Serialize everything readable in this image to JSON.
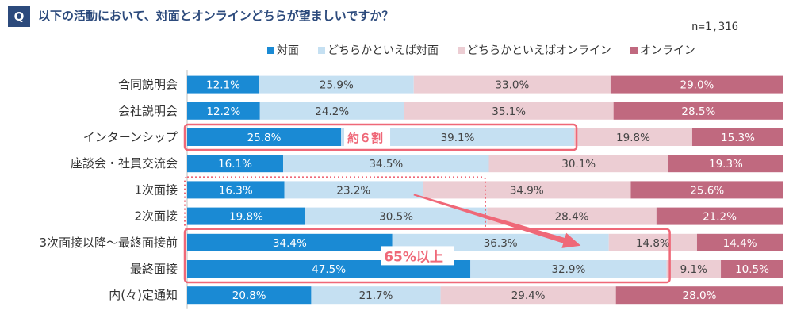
{
  "header": {
    "badge": "Q",
    "question": "以下の活動において、対面とオンラインどちらが望ましいですか？",
    "sample_size": "n=1,316"
  },
  "colors": {
    "face": "#1a8ad4",
    "rather_face": "#c5e0f2",
    "rather_online": "#eccdd3",
    "online": "#c0697f",
    "highlight": "#ef6878",
    "title": "#2c4a7c"
  },
  "annotations": {
    "approx_six": "約６割",
    "over_65": "65%以上"
  },
  "chart_data": {
    "type": "bar",
    "orientation": "horizontal",
    "stacked": true,
    "xlim": [
      0,
      100
    ],
    "unit": "%",
    "legend_position": "top",
    "categories": [
      "合同説明会",
      "会社説明会",
      "インターンシップ",
      "座談会・社員交流会",
      "1次面接",
      "2次面接",
      "3次面接以降～最終面接前",
      "最終面接",
      "内(々)定通知"
    ],
    "series": [
      {
        "name": "対面",
        "color": "#1a8ad4",
        "values": [
          12.1,
          12.2,
          25.8,
          16.1,
          16.3,
          19.8,
          34.4,
          47.5,
          20.8
        ],
        "labels": [
          "12.1%",
          "12.2%",
          "25.8%",
          "16.1%",
          "16.3%",
          "19.8%",
          "34.4%",
          "47.5%",
          "20.8%"
        ]
      },
      {
        "name": "どちらかといえば対面",
        "color": "#c5e0f2",
        "values": [
          25.9,
          24.2,
          39.1,
          34.5,
          23.2,
          30.5,
          36.3,
          32.9,
          21.7
        ],
        "labels": [
          "25.9%",
          "24.2%",
          "39.1%",
          "34.5%",
          "23.2%",
          "30.5%",
          "36.3%",
          "32.9%",
          "21.7%"
        ]
      },
      {
        "name": "どちらかといえばオンライン",
        "color": "#eccdd3",
        "values": [
          33.0,
          35.1,
          19.8,
          30.1,
          34.9,
          28.4,
          14.8,
          9.1,
          29.4
        ],
        "labels": [
          "33.0%",
          "35.1%",
          "19.8%",
          "30.1%",
          "34.9%",
          "28.4%",
          "14.8%",
          "9.1%",
          "29.4%"
        ]
      },
      {
        "name": "オンライン",
        "color": "#c0697f",
        "values": [
          29.0,
          28.5,
          15.3,
          19.3,
          25.6,
          21.2,
          14.4,
          10.5,
          28.0
        ],
        "labels": [
          "29.0%",
          "28.5%",
          "15.3%",
          "19.3%",
          "25.6%",
          "21.2%",
          "14.4%",
          "10.5%",
          "28.0%"
        ]
      }
    ]
  }
}
